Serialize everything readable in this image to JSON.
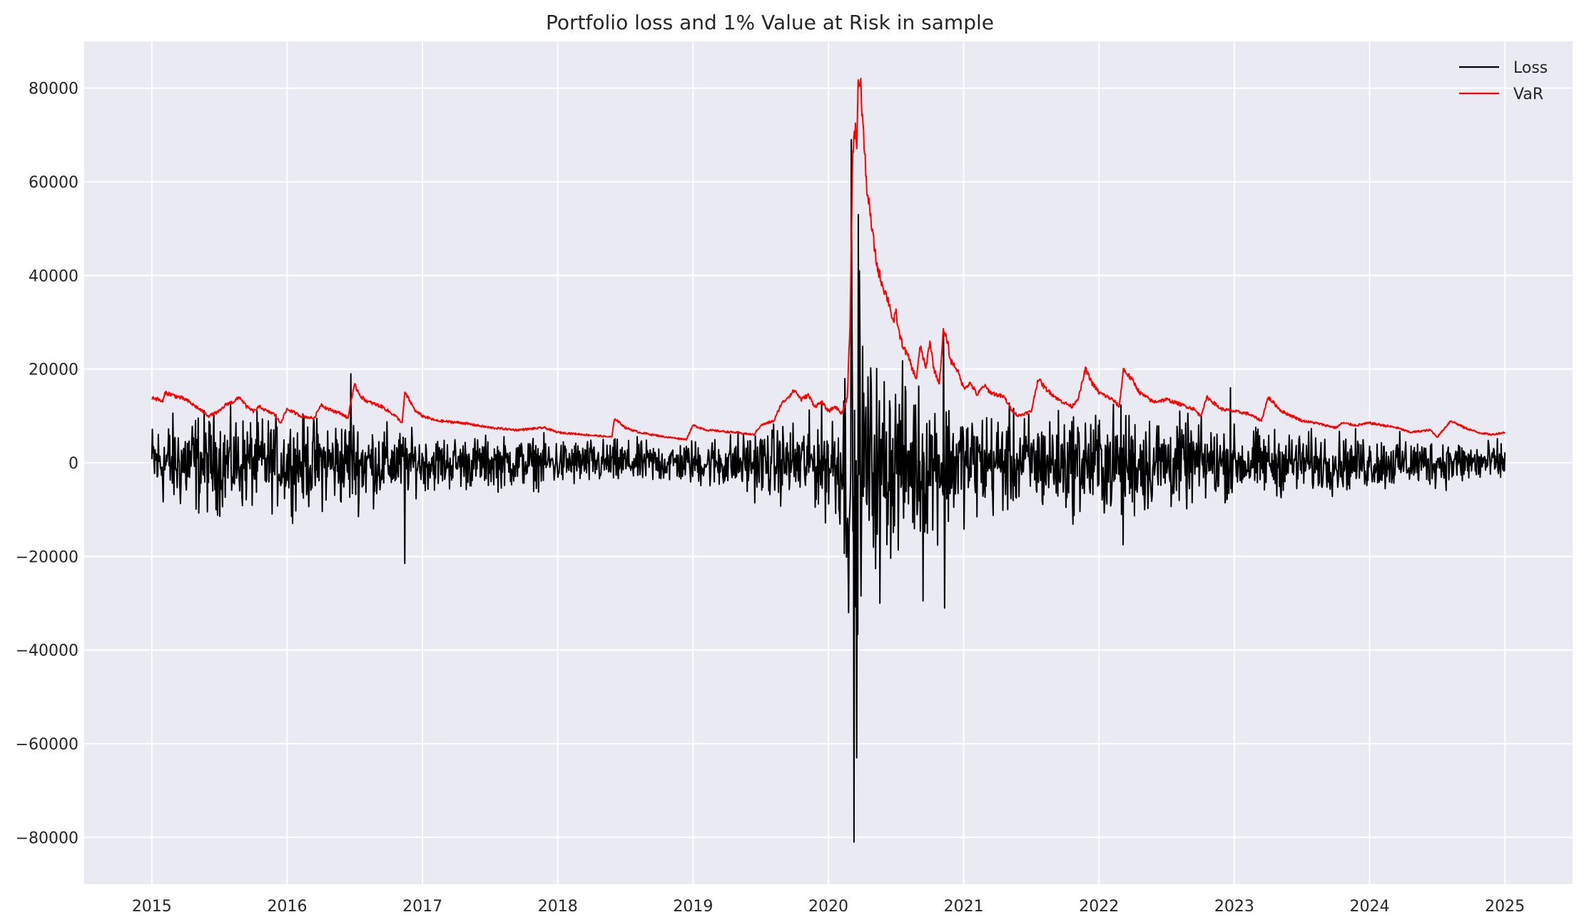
{
  "chart_data": {
    "type": "line",
    "title": "Portfolio loss and 1% Value at Risk in sample",
    "xlabel": "",
    "ylabel": "",
    "x_range": [
      2015.0,
      2025.0
    ],
    "xlim": [
      2014.5,
      2025.5
    ],
    "ylim": [
      -90000,
      90000
    ],
    "x_ticks": [
      {
        "value": 2015,
        "label": "2015"
      },
      {
        "value": 2016,
        "label": "2016"
      },
      {
        "value": 2017,
        "label": "2017"
      },
      {
        "value": 2018,
        "label": "2018"
      },
      {
        "value": 2019,
        "label": "2019"
      },
      {
        "value": 2020,
        "label": "2020"
      },
      {
        "value": 2021,
        "label": "2021"
      },
      {
        "value": 2022,
        "label": "2022"
      },
      {
        "value": 2023,
        "label": "2023"
      },
      {
        "value": 2024,
        "label": "2024"
      },
      {
        "value": 2025,
        "label": "2025"
      }
    ],
    "y_ticks": [
      {
        "value": -80000,
        "label": "−80000"
      },
      {
        "value": -60000,
        "label": "−60000"
      },
      {
        "value": -40000,
        "label": "−40000"
      },
      {
        "value": -20000,
        "label": "−20000"
      },
      {
        "value": 0,
        "label": "0"
      },
      {
        "value": 20000,
        "label": "20000"
      },
      {
        "value": 40000,
        "label": "40000"
      },
      {
        "value": 60000,
        "label": "60000"
      },
      {
        "value": 80000,
        "label": "80000"
      }
    ],
    "grid": true,
    "legend_position": "top-right",
    "background_color": "#eaeaf2",
    "series": [
      {
        "name": "Loss",
        "color": "#000000",
        "approximate": true,
        "extremes": [
          {
            "x": 2016.87,
            "y": -21500
          },
          {
            "x": 2016.47,
            "y": 19000
          },
          {
            "x": 2020.17,
            "y": 69000
          },
          {
            "x": 2020.19,
            "y": -81000
          },
          {
            "x": 2020.21,
            "y": -63000
          },
          {
            "x": 2020.22,
            "y": 53000
          },
          {
            "x": 2020.23,
            "y": 41000
          },
          {
            "x": 2020.38,
            "y": -30000
          },
          {
            "x": 2020.7,
            "y": -29500
          },
          {
            "x": 2020.86,
            "y": -31000
          },
          {
            "x": 2020.85,
            "y": 28000
          },
          {
            "x": 2022.18,
            "y": -17500
          },
          {
            "x": 2022.97,
            "y": 16000
          }
        ],
        "amplitude_profile": [
          [
            2015.0,
            6000
          ],
          [
            2015.3,
            7500
          ],
          [
            2015.8,
            6500
          ],
          [
            2016.5,
            6500
          ],
          [
            2017.0,
            4000
          ],
          [
            2018.0,
            3500
          ],
          [
            2018.9,
            3000
          ],
          [
            2019.5,
            5000
          ],
          [
            2019.9,
            6500
          ],
          [
            2020.1,
            10000
          ],
          [
            2020.15,
            25000
          ],
          [
            2020.3,
            15000
          ],
          [
            2020.6,
            12000
          ],
          [
            2021.0,
            8000
          ],
          [
            2021.5,
            7000
          ],
          [
            2022.2,
            8000
          ],
          [
            2023.0,
            5000
          ],
          [
            2024.0,
            4000
          ],
          [
            2025.0,
            3000
          ]
        ]
      },
      {
        "name": "VaR",
        "color": "#ff0000",
        "approximate": true,
        "points": [
          [
            2015.0,
            14000
          ],
          [
            2015.05,
            13500
          ],
          [
            2015.08,
            13000
          ],
          [
            2015.1,
            15000
          ],
          [
            2015.15,
            14500
          ],
          [
            2015.25,
            13500
          ],
          [
            2015.3,
            12500
          ],
          [
            2015.35,
            11500
          ],
          [
            2015.42,
            10000
          ],
          [
            2015.5,
            11000
          ],
          [
            2015.55,
            12500
          ],
          [
            2015.6,
            13000
          ],
          [
            2015.65,
            14000
          ],
          [
            2015.7,
            12000
          ],
          [
            2015.75,
            11000
          ],
          [
            2015.8,
            12000
          ],
          [
            2015.85,
            11000
          ],
          [
            2015.9,
            10500
          ],
          [
            2015.95,
            8500
          ],
          [
            2016.0,
            11500
          ],
          [
            2016.1,
            10000
          ],
          [
            2016.2,
            9500
          ],
          [
            2016.25,
            12500
          ],
          [
            2016.3,
            11500
          ],
          [
            2016.4,
            10500
          ],
          [
            2016.45,
            9500
          ],
          [
            2016.47,
            13000
          ],
          [
            2016.5,
            16500
          ],
          [
            2016.55,
            14000
          ],
          [
            2016.6,
            13000
          ],
          [
            2016.7,
            12000
          ],
          [
            2016.8,
            10000
          ],
          [
            2016.85,
            8500
          ],
          [
            2016.87,
            15000
          ],
          [
            2016.95,
            11000
          ],
          [
            2017.0,
            10000
          ],
          [
            2017.1,
            9000
          ],
          [
            2017.3,
            8500
          ],
          [
            2017.5,
            7500
          ],
          [
            2017.7,
            7000
          ],
          [
            2017.9,
            7500
          ],
          [
            2018.0,
            6500
          ],
          [
            2018.2,
            6000
          ],
          [
            2018.4,
            5500
          ],
          [
            2018.42,
            9500
          ],
          [
            2018.5,
            7500
          ],
          [
            2018.6,
            6500
          ],
          [
            2018.8,
            5500
          ],
          [
            2018.95,
            5000
          ],
          [
            2019.0,
            8000
          ],
          [
            2019.1,
            7000
          ],
          [
            2019.3,
            6500
          ],
          [
            2019.45,
            6000
          ],
          [
            2019.5,
            8000
          ],
          [
            2019.6,
            9000
          ],
          [
            2019.65,
            12500
          ],
          [
            2019.7,
            14000
          ],
          [
            2019.75,
            15500
          ],
          [
            2019.8,
            13500
          ],
          [
            2019.85,
            14500
          ],
          [
            2019.9,
            12000
          ],
          [
            2019.95,
            13000
          ],
          [
            2020.0,
            11000
          ],
          [
            2020.05,
            12000
          ],
          [
            2020.1,
            10500
          ],
          [
            2020.14,
            14000
          ],
          [
            2020.16,
            30000
          ],
          [
            2020.18,
            65000
          ],
          [
            2020.2,
            72000
          ],
          [
            2020.21,
            68000
          ],
          [
            2020.22,
            80000
          ],
          [
            2020.23,
            82000
          ],
          [
            2020.24,
            80000
          ],
          [
            2020.26,
            70000
          ],
          [
            2020.28,
            60000
          ],
          [
            2020.3,
            55000
          ],
          [
            2020.33,
            48000
          ],
          [
            2020.36,
            42000
          ],
          [
            2020.4,
            38000
          ],
          [
            2020.45,
            34000
          ],
          [
            2020.48,
            30000
          ],
          [
            2020.5,
            32000
          ],
          [
            2020.52,
            28000
          ],
          [
            2020.55,
            25000
          ],
          [
            2020.6,
            22000
          ],
          [
            2020.62,
            20000
          ],
          [
            2020.65,
            18000
          ],
          [
            2020.68,
            25000
          ],
          [
            2020.72,
            20000
          ],
          [
            2020.75,
            26000
          ],
          [
            2020.78,
            20000
          ],
          [
            2020.82,
            17000
          ],
          [
            2020.85,
            28000
          ],
          [
            2020.88,
            26000
          ],
          [
            2020.9,
            22000
          ],
          [
            2020.95,
            20000
          ],
          [
            2021.0,
            16000
          ],
          [
            2021.05,
            17000
          ],
          [
            2021.1,
            14500
          ],
          [
            2021.15,
            16500
          ],
          [
            2021.2,
            15000
          ],
          [
            2021.3,
            14000
          ],
          [
            2021.35,
            11500
          ],
          [
            2021.4,
            10000
          ],
          [
            2021.5,
            11000
          ],
          [
            2021.55,
            18000
          ],
          [
            2021.6,
            16000
          ],
          [
            2021.7,
            13500
          ],
          [
            2021.8,
            12000
          ],
          [
            2021.85,
            14000
          ],
          [
            2021.9,
            20000
          ],
          [
            2021.95,
            17000
          ],
          [
            2022.0,
            15000
          ],
          [
            2022.1,
            13500
          ],
          [
            2022.15,
            12000
          ],
          [
            2022.18,
            20000
          ],
          [
            2022.25,
            17500
          ],
          [
            2022.3,
            15000
          ],
          [
            2022.4,
            13000
          ],
          [
            2022.5,
            13500
          ],
          [
            2022.6,
            12500
          ],
          [
            2022.7,
            11500
          ],
          [
            2022.75,
            10000
          ],
          [
            2022.8,
            14000
          ],
          [
            2022.9,
            11500
          ],
          [
            2023.0,
            11000
          ],
          [
            2023.1,
            10500
          ],
          [
            2023.2,
            9000
          ],
          [
            2023.25,
            14000
          ],
          [
            2023.35,
            11000
          ],
          [
            2023.5,
            9000
          ],
          [
            2023.6,
            8500
          ],
          [
            2023.75,
            7500
          ],
          [
            2023.8,
            8500
          ],
          [
            2023.9,
            8000
          ],
          [
            2024.0,
            8500
          ],
          [
            2024.2,
            7500
          ],
          [
            2024.3,
            6500
          ],
          [
            2024.45,
            7000
          ],
          [
            2024.5,
            5500
          ],
          [
            2024.6,
            9000
          ],
          [
            2024.7,
            7500
          ],
          [
            2024.8,
            6500
          ],
          [
            2024.9,
            6000
          ],
          [
            2025.0,
            6500
          ]
        ]
      }
    ]
  }
}
